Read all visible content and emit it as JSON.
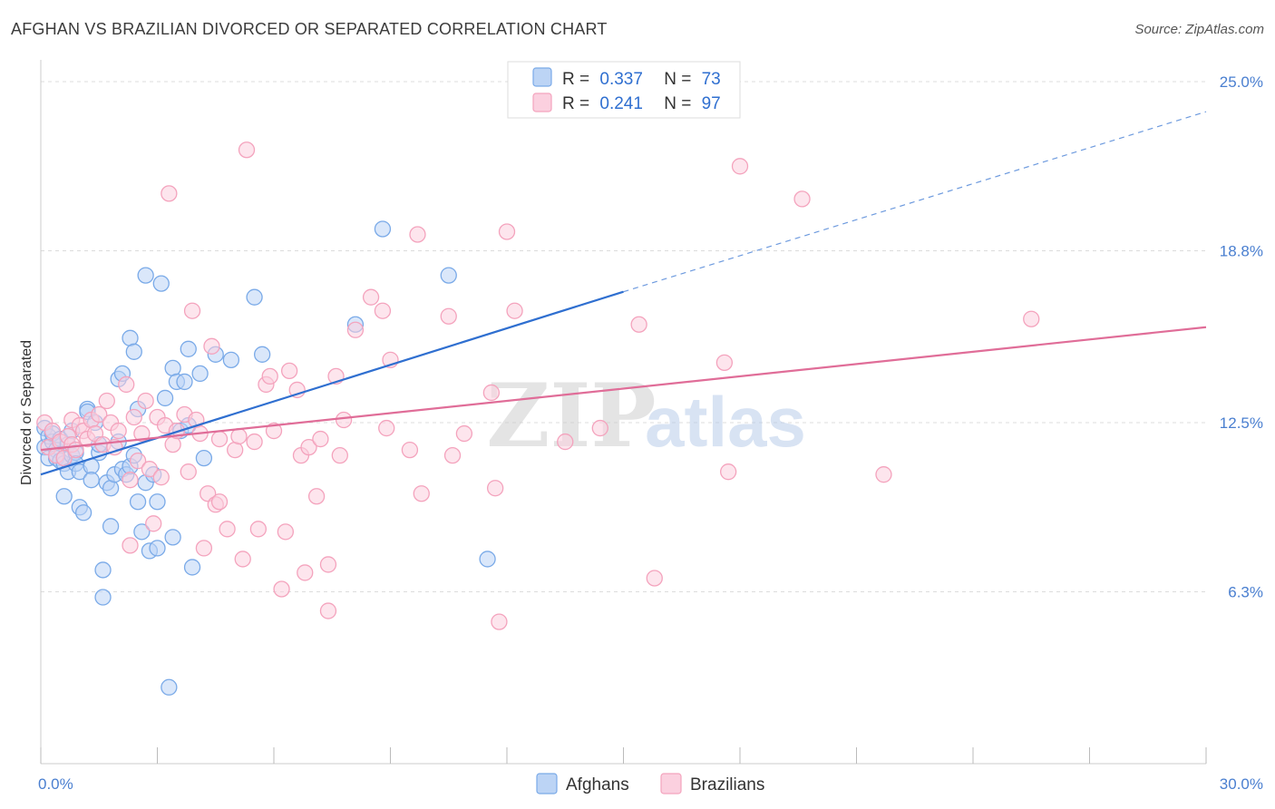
{
  "header": {
    "title": "AFGHAN VS BRAZILIAN DIVORCED OR SEPARATED CORRELATION CHART",
    "source": "Source: ZipAtlas.com"
  },
  "watermark": {
    "zip": "ZIP",
    "atlas": "atlas"
  },
  "legend_top": [
    {
      "r_label": "R =",
      "r_value": "0.337",
      "n_label": "N =",
      "n_value": "73",
      "color": "#7aaae8"
    },
    {
      "r_label": "R =",
      "r_value": "0.241",
      "n_label": "N =",
      "n_value": "97",
      "color": "#f4a3bd"
    }
  ],
  "chart_data": {
    "type": "scatter",
    "xlabel": "",
    "ylabel": "Divorced or Separated",
    "xlim": [
      0,
      30
    ],
    "ylim": [
      0,
      25.8
    ],
    "y_ticks": [
      6.3,
      12.5,
      18.8,
      25.0
    ],
    "y_tick_labels": [
      "6.3%",
      "12.5%",
      "18.8%",
      "25.0%"
    ],
    "x_tick_labels": [
      "0.0%",
      "30.0%"
    ],
    "grid": true,
    "legend_position": "bottom-center",
    "series": [
      {
        "name": "Afghans",
        "color": "#7aaae8",
        "line_color": "#2f6fd0",
        "trend": {
          "x0": 0,
          "y0": 10.6,
          "x1": 15,
          "y1": 17.3,
          "x_extend": 30,
          "y_extend": 23.9
        },
        "points": [
          [
            0.1,
            12.3
          ],
          [
            0.1,
            11.6
          ],
          [
            0.2,
            11.2
          ],
          [
            0.2,
            12.0
          ],
          [
            0.3,
            11.8
          ],
          [
            0.3,
            12.1
          ],
          [
            0.4,
            11.5
          ],
          [
            0.4,
            11.2
          ],
          [
            0.5,
            11.1
          ],
          [
            0.5,
            11.9
          ],
          [
            0.6,
            11.0
          ],
          [
            0.6,
            9.8
          ],
          [
            0.7,
            10.7
          ],
          [
            0.7,
            11.7
          ],
          [
            0.8,
            11.3
          ],
          [
            0.9,
            11.4
          ],
          [
            0.9,
            11.0
          ],
          [
            1.0,
            10.7
          ],
          [
            1.0,
            9.4
          ],
          [
            1.1,
            9.2
          ],
          [
            1.2,
            13.0
          ],
          [
            1.2,
            12.9
          ],
          [
            1.3,
            10.9
          ],
          [
            1.3,
            10.4
          ],
          [
            1.4,
            12.5
          ],
          [
            1.5,
            11.4
          ],
          [
            1.6,
            7.1
          ],
          [
            1.6,
            6.1
          ],
          [
            1.7,
            10.3
          ],
          [
            1.8,
            8.7
          ],
          [
            1.8,
            10.1
          ],
          [
            1.9,
            10.6
          ],
          [
            2.0,
            11.8
          ],
          [
            2.0,
            14.1
          ],
          [
            2.1,
            10.8
          ],
          [
            2.1,
            14.3
          ],
          [
            2.2,
            10.6
          ],
          [
            2.3,
            10.9
          ],
          [
            2.3,
            15.6
          ],
          [
            2.4,
            11.3
          ],
          [
            2.4,
            15.1
          ],
          [
            2.5,
            9.6
          ],
          [
            2.5,
            13.0
          ],
          [
            2.6,
            8.5
          ],
          [
            2.7,
            17.9
          ],
          [
            2.7,
            10.3
          ],
          [
            2.8,
            7.8
          ],
          [
            2.9,
            10.6
          ],
          [
            3.0,
            9.6
          ],
          [
            3.0,
            7.9
          ],
          [
            3.1,
            17.6
          ],
          [
            3.2,
            13.4
          ],
          [
            3.3,
            2.8
          ],
          [
            3.4,
            8.3
          ],
          [
            3.4,
            14.5
          ],
          [
            3.5,
            14.0
          ],
          [
            3.6,
            12.2
          ],
          [
            3.7,
            14.0
          ],
          [
            3.8,
            12.4
          ],
          [
            3.8,
            15.2
          ],
          [
            3.9,
            7.2
          ],
          [
            4.1,
            14.3
          ],
          [
            4.2,
            11.2
          ],
          [
            4.5,
            15.0
          ],
          [
            4.9,
            14.8
          ],
          [
            5.5,
            17.1
          ],
          [
            5.7,
            15.0
          ],
          [
            8.1,
            16.1
          ],
          [
            8.8,
            19.6
          ],
          [
            10.5,
            17.9
          ],
          [
            11.5,
            7.5
          ],
          [
            0.8,
            12.2
          ],
          [
            1.5,
            11.7
          ]
        ]
      },
      {
        "name": "Brazilians",
        "color": "#f4a3bd",
        "line_color": "#e06d98",
        "trend": {
          "x0": 0,
          "y0": 11.5,
          "x1": 30,
          "y1": 16.0
        },
        "points": [
          [
            0.1,
            12.5
          ],
          [
            0.2,
            11.6
          ],
          [
            0.3,
            12.2
          ],
          [
            0.4,
            11.3
          ],
          [
            0.5,
            11.8
          ],
          [
            0.6,
            11.2
          ],
          [
            0.7,
            12.0
          ],
          [
            0.8,
            11.7
          ],
          [
            0.8,
            12.6
          ],
          [
            0.9,
            11.5
          ],
          [
            1.0,
            12.4
          ],
          [
            1.1,
            12.2
          ],
          [
            1.2,
            11.9
          ],
          [
            1.3,
            12.6
          ],
          [
            1.4,
            12.1
          ],
          [
            1.5,
            12.8
          ],
          [
            1.6,
            11.7
          ],
          [
            1.7,
            13.3
          ],
          [
            1.8,
            12.5
          ],
          [
            1.9,
            11.6
          ],
          [
            2.0,
            12.2
          ],
          [
            2.2,
            13.9
          ],
          [
            2.3,
            10.4
          ],
          [
            2.4,
            12.7
          ],
          [
            2.5,
            11.1
          ],
          [
            2.6,
            12.1
          ],
          [
            2.7,
            13.3
          ],
          [
            2.8,
            10.8
          ],
          [
            2.9,
            8.8
          ],
          [
            3.0,
            12.7
          ],
          [
            3.1,
            10.5
          ],
          [
            3.2,
            12.4
          ],
          [
            3.3,
            20.9
          ],
          [
            3.4,
            11.7
          ],
          [
            3.5,
            12.2
          ],
          [
            3.7,
            12.8
          ],
          [
            3.8,
            10.7
          ],
          [
            3.9,
            16.6
          ],
          [
            4.0,
            12.6
          ],
          [
            4.1,
            12.1
          ],
          [
            4.2,
            7.9
          ],
          [
            4.3,
            9.9
          ],
          [
            4.4,
            15.3
          ],
          [
            4.5,
            9.5
          ],
          [
            4.6,
            11.9
          ],
          [
            4.8,
            8.6
          ],
          [
            5.0,
            11.5
          ],
          [
            5.1,
            12.0
          ],
          [
            5.2,
            7.5
          ],
          [
            5.3,
            22.5
          ],
          [
            5.5,
            11.8
          ],
          [
            5.6,
            8.6
          ],
          [
            5.8,
            13.9
          ],
          [
            5.9,
            14.2
          ],
          [
            6.0,
            12.2
          ],
          [
            6.2,
            6.4
          ],
          [
            6.3,
            8.5
          ],
          [
            6.4,
            14.4
          ],
          [
            6.6,
            13.7
          ],
          [
            6.7,
            11.3
          ],
          [
            6.9,
            11.6
          ],
          [
            7.1,
            9.8
          ],
          [
            7.2,
            11.9
          ],
          [
            7.4,
            5.6
          ],
          [
            7.4,
            7.3
          ],
          [
            7.6,
            14.2
          ],
          [
            7.7,
            11.3
          ],
          [
            7.8,
            12.6
          ],
          [
            8.1,
            15.9
          ],
          [
            8.5,
            17.1
          ],
          [
            8.8,
            16.6
          ],
          [
            8.9,
            12.3
          ],
          [
            9.0,
            14.8
          ],
          [
            9.5,
            11.5
          ],
          [
            9.7,
            19.4
          ],
          [
            9.8,
            9.9
          ],
          [
            10.5,
            16.4
          ],
          [
            10.6,
            11.3
          ],
          [
            10.9,
            12.1
          ],
          [
            11.6,
            13.6
          ],
          [
            11.7,
            10.1
          ],
          [
            11.8,
            5.2
          ],
          [
            12.0,
            19.5
          ],
          [
            12.2,
            16.6
          ],
          [
            13.5,
            11.8
          ],
          [
            14.4,
            12.3
          ],
          [
            15.4,
            16.1
          ],
          [
            15.8,
            6.8
          ],
          [
            17.6,
            14.7
          ],
          [
            17.7,
            10.7
          ],
          [
            18.0,
            21.9
          ],
          [
            19.6,
            20.7
          ],
          [
            21.7,
            10.6
          ],
          [
            25.5,
            16.3
          ],
          [
            4.6,
            9.6
          ],
          [
            6.8,
            7.0
          ],
          [
            2.3,
            8.0
          ]
        ]
      }
    ]
  },
  "legend_bottom": [
    {
      "label": "Afghans",
      "color": "#7aaae8"
    },
    {
      "label": "Brazilians",
      "color": "#f4a3bd"
    }
  ]
}
